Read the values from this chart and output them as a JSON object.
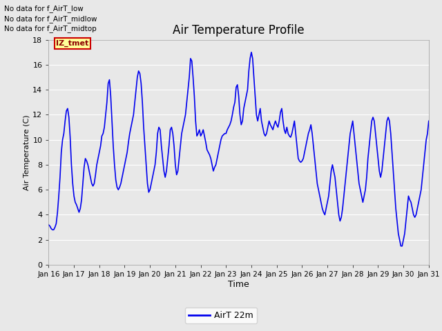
{
  "title": "Air Temperature Profile",
  "xlabel": "Time",
  "ylabel": "Air Temperature (C)",
  "xlim": [
    0,
    15
  ],
  "ylim": [
    0,
    18
  ],
  "yticks": [
    0,
    2,
    4,
    6,
    8,
    10,
    12,
    14,
    16,
    18
  ],
  "xtick_labels": [
    "Jan 16",
    "Jan 17",
    "Jan 18",
    "Jan 19",
    "Jan 20",
    "Jan 21",
    "Jan 22",
    "Jan 23",
    "Jan 24",
    "Jan 25",
    "Jan 26",
    "Jan 27",
    "Jan 28",
    "Jan 29",
    "Jan 30",
    "Jan 31"
  ],
  "line_color": "#0000EE",
  "line_width": 1.2,
  "bg_color": "#E8E8E8",
  "grid_color": "#FFFFFF",
  "annotations_top_left": [
    "No data for f_AirT_low",
    "No data for f_AirT_midlow",
    "No data for f_AirT_midtop"
  ],
  "legend_label": "AirT 22m",
  "legend_box_text": "IZ_tmet",
  "temp_data": [
    [
      0.0,
      3.2
    ],
    [
      0.05,
      3.1
    ],
    [
      0.1,
      2.9
    ],
    [
      0.15,
      2.8
    ],
    [
      0.2,
      2.8
    ],
    [
      0.25,
      3.0
    ],
    [
      0.3,
      3.3
    ],
    [
      0.35,
      4.2
    ],
    [
      0.4,
      5.5
    ],
    [
      0.45,
      7.0
    ],
    [
      0.5,
      9.0
    ],
    [
      0.55,
      10.0
    ],
    [
      0.6,
      10.5
    ],
    [
      0.65,
      11.5
    ],
    [
      0.7,
      12.3
    ],
    [
      0.75,
      12.5
    ],
    [
      0.8,
      11.8
    ],
    [
      0.85,
      10.2
    ],
    [
      0.9,
      8.0
    ],
    [
      0.95,
      6.5
    ],
    [
      1.0,
      5.5
    ],
    [
      1.05,
      5.0
    ],
    [
      1.1,
      4.8
    ],
    [
      1.15,
      4.5
    ],
    [
      1.2,
      4.2
    ],
    [
      1.25,
      4.5
    ],
    [
      1.3,
      5.2
    ],
    [
      1.35,
      6.5
    ],
    [
      1.4,
      7.8
    ],
    [
      1.45,
      8.5
    ],
    [
      1.5,
      8.3
    ],
    [
      1.55,
      8.0
    ],
    [
      1.6,
      7.5
    ],
    [
      1.65,
      7.0
    ],
    [
      1.7,
      6.5
    ],
    [
      1.75,
      6.3
    ],
    [
      1.8,
      6.5
    ],
    [
      1.85,
      7.2
    ],
    [
      1.9,
      8.0
    ],
    [
      1.95,
      8.5
    ],
    [
      2.0,
      9.0
    ],
    [
      2.05,
      9.5
    ],
    [
      2.1,
      10.3
    ],
    [
      2.15,
      10.5
    ],
    [
      2.2,
      11.0
    ],
    [
      2.25,
      12.0
    ],
    [
      2.3,
      13.0
    ],
    [
      2.35,
      14.5
    ],
    [
      2.4,
      14.8
    ],
    [
      2.45,
      13.5
    ],
    [
      2.5,
      11.5
    ],
    [
      2.55,
      9.5
    ],
    [
      2.6,
      8.0
    ],
    [
      2.65,
      6.8
    ],
    [
      2.7,
      6.2
    ],
    [
      2.75,
      6.0
    ],
    [
      2.8,
      6.2
    ],
    [
      2.85,
      6.5
    ],
    [
      2.9,
      7.0
    ],
    [
      2.95,
      7.5
    ],
    [
      3.0,
      8.0
    ],
    [
      3.05,
      8.5
    ],
    [
      3.1,
      9.0
    ],
    [
      3.15,
      9.8
    ],
    [
      3.2,
      10.5
    ],
    [
      3.25,
      11.0
    ],
    [
      3.3,
      11.5
    ],
    [
      3.35,
      12.0
    ],
    [
      3.4,
      13.0
    ],
    [
      3.45,
      14.0
    ],
    [
      3.5,
      15.0
    ],
    [
      3.55,
      15.5
    ],
    [
      3.6,
      15.3
    ],
    [
      3.65,
      14.5
    ],
    [
      3.7,
      13.0
    ],
    [
      3.75,
      11.0
    ],
    [
      3.8,
      9.5
    ],
    [
      3.85,
      8.0
    ],
    [
      3.9,
      6.5
    ],
    [
      3.95,
      5.8
    ],
    [
      4.0,
      6.0
    ],
    [
      4.05,
      6.5
    ],
    [
      4.1,
      7.0
    ],
    [
      4.15,
      7.5
    ],
    [
      4.2,
      8.0
    ],
    [
      4.25,
      9.0
    ],
    [
      4.3,
      10.5
    ],
    [
      4.35,
      11.0
    ],
    [
      4.4,
      10.8
    ],
    [
      4.45,
      9.5
    ],
    [
      4.5,
      8.5
    ],
    [
      4.55,
      7.5
    ],
    [
      4.6,
      7.0
    ],
    [
      4.65,
      7.5
    ],
    [
      4.7,
      8.5
    ],
    [
      4.75,
      9.5
    ],
    [
      4.8,
      10.8
    ],
    [
      4.85,
      11.0
    ],
    [
      4.9,
      10.5
    ],
    [
      4.95,
      9.5
    ],
    [
      5.0,
      8.0
    ],
    [
      5.05,
      7.2
    ],
    [
      5.1,
      7.5
    ],
    [
      5.15,
      8.5
    ],
    [
      5.2,
      9.5
    ],
    [
      5.25,
      10.5
    ],
    [
      5.3,
      11.0
    ],
    [
      5.35,
      11.5
    ],
    [
      5.4,
      12.0
    ],
    [
      5.45,
      13.0
    ],
    [
      5.5,
      14.0
    ],
    [
      5.55,
      15.0
    ],
    [
      5.6,
      16.5
    ],
    [
      5.65,
      16.3
    ],
    [
      5.7,
      15.0
    ],
    [
      5.75,
      13.5
    ],
    [
      5.8,
      11.5
    ],
    [
      5.85,
      10.3
    ],
    [
      5.9,
      10.5
    ],
    [
      5.95,
      10.8
    ],
    [
      6.0,
      10.3
    ],
    [
      6.05,
      10.5
    ],
    [
      6.1,
      10.8
    ],
    [
      6.15,
      10.3
    ],
    [
      6.2,
      9.8
    ],
    [
      6.25,
      9.2
    ],
    [
      6.3,
      9.0
    ],
    [
      6.35,
      8.8
    ],
    [
      6.4,
      8.5
    ],
    [
      6.45,
      8.0
    ],
    [
      6.5,
      7.5
    ],
    [
      6.55,
      7.8
    ],
    [
      6.6,
      8.0
    ],
    [
      6.65,
      8.5
    ],
    [
      6.7,
      9.0
    ],
    [
      6.75,
      9.5
    ],
    [
      6.8,
      10.0
    ],
    [
      6.85,
      10.3
    ],
    [
      6.9,
      10.4
    ],
    [
      6.95,
      10.5
    ],
    [
      7.0,
      10.5
    ],
    [
      7.05,
      10.8
    ],
    [
      7.1,
      11.0
    ],
    [
      7.15,
      11.2
    ],
    [
      7.2,
      11.5
    ],
    [
      7.25,
      12.0
    ],
    [
      7.3,
      12.6
    ],
    [
      7.35,
      13.0
    ],
    [
      7.4,
      14.2
    ],
    [
      7.45,
      14.4
    ],
    [
      7.5,
      13.5
    ],
    [
      7.55,
      12.0
    ],
    [
      7.6,
      11.2
    ],
    [
      7.65,
      11.5
    ],
    [
      7.7,
      12.5
    ],
    [
      7.75,
      13.0
    ],
    [
      7.8,
      13.5
    ],
    [
      7.85,
      14.0
    ],
    [
      7.9,
      15.5
    ],
    [
      7.95,
      16.5
    ],
    [
      8.0,
      17.0
    ],
    [
      8.05,
      16.5
    ],
    [
      8.1,
      15.0
    ],
    [
      8.15,
      13.5
    ],
    [
      8.2,
      12.0
    ],
    [
      8.25,
      11.5
    ],
    [
      8.3,
      12.0
    ],
    [
      8.35,
      12.5
    ],
    [
      8.4,
      11.5
    ],
    [
      8.45,
      11.0
    ],
    [
      8.5,
      10.5
    ],
    [
      8.55,
      10.3
    ],
    [
      8.6,
      10.5
    ],
    [
      8.65,
      11.0
    ],
    [
      8.7,
      11.5
    ],
    [
      8.75,
      11.2
    ],
    [
      8.8,
      11.0
    ],
    [
      8.85,
      10.8
    ],
    [
      8.9,
      11.2
    ],
    [
      8.95,
      11.5
    ],
    [
      9.0,
      11.2
    ],
    [
      9.05,
      11.0
    ],
    [
      9.1,
      11.5
    ],
    [
      9.15,
      12.2
    ],
    [
      9.2,
      12.5
    ],
    [
      9.25,
      11.5
    ],
    [
      9.3,
      10.8
    ],
    [
      9.35,
      10.5
    ],
    [
      9.4,
      11.0
    ],
    [
      9.45,
      10.5
    ],
    [
      9.5,
      10.3
    ],
    [
      9.55,
      10.2
    ],
    [
      9.6,
      10.5
    ],
    [
      9.65,
      11.0
    ],
    [
      9.7,
      11.5
    ],
    [
      9.75,
      10.5
    ],
    [
      9.8,
      9.5
    ],
    [
      9.85,
      8.5
    ],
    [
      9.9,
      8.3
    ],
    [
      9.95,
      8.2
    ],
    [
      10.0,
      8.3
    ],
    [
      10.05,
      8.5
    ],
    [
      10.1,
      9.0
    ],
    [
      10.15,
      9.5
    ],
    [
      10.2,
      10.0
    ],
    [
      10.25,
      10.5
    ],
    [
      10.3,
      10.8
    ],
    [
      10.35,
      11.2
    ],
    [
      10.4,
      10.5
    ],
    [
      10.45,
      9.5
    ],
    [
      10.5,
      8.5
    ],
    [
      10.55,
      7.5
    ],
    [
      10.6,
      6.5
    ],
    [
      10.65,
      6.0
    ],
    [
      10.7,
      5.5
    ],
    [
      10.75,
      5.0
    ],
    [
      10.8,
      4.5
    ],
    [
      10.85,
      4.2
    ],
    [
      10.9,
      4.0
    ],
    [
      10.95,
      4.5
    ],
    [
      11.0,
      5.0
    ],
    [
      11.05,
      5.5
    ],
    [
      11.1,
      6.5
    ],
    [
      11.15,
      7.5
    ],
    [
      11.2,
      8.0
    ],
    [
      11.25,
      7.5
    ],
    [
      11.3,
      7.0
    ],
    [
      11.35,
      6.0
    ],
    [
      11.4,
      5.0
    ],
    [
      11.45,
      4.0
    ],
    [
      11.5,
      3.5
    ],
    [
      11.55,
      3.8
    ],
    [
      11.6,
      4.5
    ],
    [
      11.65,
      5.5
    ],
    [
      11.7,
      6.5
    ],
    [
      11.75,
      7.5
    ],
    [
      11.8,
      8.5
    ],
    [
      11.85,
      9.5
    ],
    [
      11.9,
      10.5
    ],
    [
      11.95,
      11.0
    ],
    [
      12.0,
      11.5
    ],
    [
      12.05,
      10.5
    ],
    [
      12.1,
      9.5
    ],
    [
      12.15,
      8.5
    ],
    [
      12.2,
      7.5
    ],
    [
      12.25,
      6.5
    ],
    [
      12.3,
      6.0
    ],
    [
      12.35,
      5.5
    ],
    [
      12.4,
      5.0
    ],
    [
      12.45,
      5.5
    ],
    [
      12.5,
      6.0
    ],
    [
      12.55,
      7.0
    ],
    [
      12.6,
      8.5
    ],
    [
      12.65,
      9.5
    ],
    [
      12.7,
      10.5
    ],
    [
      12.75,
      11.5
    ],
    [
      12.8,
      11.8
    ],
    [
      12.85,
      11.5
    ],
    [
      12.9,
      10.5
    ],
    [
      12.95,
      9.5
    ],
    [
      13.0,
      8.5
    ],
    [
      13.05,
      7.5
    ],
    [
      13.1,
      7.0
    ],
    [
      13.15,
      7.5
    ],
    [
      13.2,
      8.5
    ],
    [
      13.25,
      9.5
    ],
    [
      13.3,
      10.5
    ],
    [
      13.35,
      11.5
    ],
    [
      13.4,
      11.8
    ],
    [
      13.45,
      11.5
    ],
    [
      13.5,
      10.5
    ],
    [
      13.55,
      9.0
    ],
    [
      13.6,
      7.5
    ],
    [
      13.65,
      6.0
    ],
    [
      13.7,
      4.5
    ],
    [
      13.75,
      3.5
    ],
    [
      13.8,
      2.5
    ],
    [
      13.85,
      2.0
    ],
    [
      13.9,
      1.5
    ],
    [
      13.95,
      1.5
    ],
    [
      14.0,
      2.0
    ],
    [
      14.05,
      2.5
    ],
    [
      14.1,
      3.5
    ],
    [
      14.15,
      4.5
    ],
    [
      14.2,
      5.5
    ],
    [
      14.25,
      5.2
    ],
    [
      14.3,
      5.0
    ],
    [
      14.35,
      4.5
    ],
    [
      14.4,
      4.0
    ],
    [
      14.45,
      3.8
    ],
    [
      14.5,
      4.0
    ],
    [
      14.55,
      4.5
    ],
    [
      14.6,
      5.0
    ],
    [
      14.65,
      5.5
    ],
    [
      14.7,
      6.0
    ],
    [
      14.75,
      7.0
    ],
    [
      14.8,
      8.0
    ],
    [
      14.85,
      9.0
    ],
    [
      14.9,
      10.0
    ],
    [
      14.95,
      10.5
    ],
    [
      15.0,
      11.5
    ]
  ]
}
